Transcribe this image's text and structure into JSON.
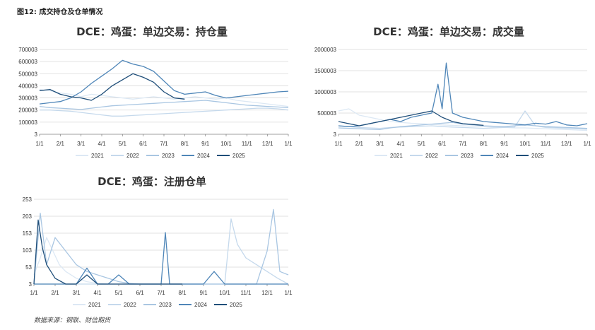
{
  "figure": {
    "title": "图12: 成交持仓及仓单情况",
    "source": "数据来源：钢联、财信期货"
  },
  "chart_data": [
    {
      "type": "line",
      "title": "DCE：鸡蛋：单边交易：持仓量",
      "y_ticks": [
        "3",
        "100003",
        "200003",
        "300003",
        "400003",
        "500003",
        "600003",
        "700003"
      ],
      "ylim": [
        3,
        700003
      ],
      "x_ticks": [
        "1/1",
        "2/1",
        "3/1",
        "4/1",
        "5/1",
        "6/1",
        "7/1",
        "8/1",
        "9/1",
        "10/1",
        "11/1",
        "12/1",
        "1/1"
      ],
      "xlim": [
        0,
        12
      ],
      "grid": true,
      "legend": "bottom",
      "series": [
        {
          "name": "2021",
          "color": "#dce8f4",
          "x": [
            0,
            0.5,
            1,
            1.5,
            2,
            2.5,
            3,
            3.5,
            4,
            4.5,
            5,
            5.5,
            6,
            6.5,
            7,
            7.5,
            8,
            8.5,
            9,
            9.5,
            10,
            10.5,
            11,
            11.5,
            12
          ],
          "y": [
            370000,
            360000,
            340000,
            330000,
            310000,
            330000,
            320000,
            310000,
            300000,
            290000,
            300000,
            310000,
            300000,
            290000,
            300000,
            310000,
            300000,
            290000,
            300000,
            280000,
            270000,
            260000,
            250000,
            240000,
            230000
          ]
        },
        {
          "name": "2022",
          "color": "#c5d9ec",
          "x": [
            0,
            0.5,
            1,
            1.5,
            2,
            2.5,
            3,
            3.5,
            4,
            4.5,
            5,
            5.5,
            6,
            6.5,
            7,
            7.5,
            8,
            8.5,
            9,
            9.5,
            10,
            10.5,
            11,
            11.5,
            12
          ],
          "y": [
            200000,
            200000,
            195000,
            190000,
            180000,
            170000,
            160000,
            150000,
            150000,
            155000,
            160000,
            165000,
            170000,
            175000,
            180000,
            185000,
            190000,
            195000,
            200000,
            205000,
            210000,
            215000,
            215000,
            210000,
            200000
          ]
        },
        {
          "name": "2023",
          "color": "#a9c6e2",
          "x": [
            0,
            0.5,
            1,
            1.5,
            2,
            2.5,
            3,
            3.5,
            4,
            4.5,
            5,
            5.5,
            6,
            6.5,
            7,
            7.5,
            8,
            8.5,
            9,
            9.5,
            10,
            10.5,
            11,
            11.5,
            12
          ],
          "y": [
            230000,
            220000,
            215000,
            210000,
            205000,
            215000,
            225000,
            235000,
            240000,
            245000,
            250000,
            255000,
            260000,
            265000,
            270000,
            275000,
            280000,
            270000,
            260000,
            250000,
            240000,
            235000,
            230000,
            225000,
            220000
          ]
        },
        {
          "name": "2024",
          "color": "#4f86b8",
          "x": [
            0,
            0.5,
            1,
            1.5,
            2,
            2.5,
            3,
            3.5,
            4,
            4.5,
            5,
            5.5,
            6,
            6.5,
            7,
            7.5,
            8,
            8.5,
            9,
            9.5,
            10,
            10.5,
            11,
            11.5,
            12
          ],
          "y": [
            250000,
            260000,
            270000,
            300000,
            350000,
            420000,
            480000,
            540000,
            610000,
            580000,
            560000,
            520000,
            440000,
            360000,
            330000,
            340000,
            350000,
            320000,
            300000,
            310000,
            320000,
            330000,
            340000,
            350000,
            355000
          ]
        },
        {
          "name": "2025",
          "color": "#1f4e79",
          "x": [
            0,
            0.5,
            1,
            1.5,
            2,
            2.5,
            3,
            3.5,
            4,
            4.5,
            5,
            5.5,
            6,
            6.5,
            7
          ],
          "y": [
            360000,
            370000,
            330000,
            310000,
            300000,
            280000,
            330000,
            400000,
            450000,
            500000,
            470000,
            430000,
            350000,
            300000,
            290000
          ]
        }
      ]
    },
    {
      "type": "line",
      "title": "DCE：鸡蛋：单边交易：成交量",
      "y_ticks": [
        "3",
        "500003",
        "1000003",
        "1500003",
        "2000003"
      ],
      "ylim": [
        3,
        2000003
      ],
      "x_ticks": [
        "1/1",
        "2/1",
        "3/1",
        "4/1",
        "5/1",
        "6/1",
        "7/1",
        "8/1",
        "9/1",
        "10/1",
        "11/1",
        "12/1",
        "1/1"
      ],
      "xlim": [
        0,
        12
      ],
      "grid": true,
      "legend": "bottom",
      "series": [
        {
          "name": "2021",
          "color": "#dce8f4",
          "x": [
            0,
            0.5,
            1,
            1.5,
            2,
            2.5,
            3,
            3.5,
            4,
            4.5,
            5,
            5.5,
            6,
            6.5,
            7,
            7.5,
            8,
            8.5,
            9,
            9.5,
            10,
            10.5,
            11,
            11.5,
            12
          ],
          "y": [
            550000,
            600000,
            450000,
            400000,
            350000,
            300000,
            280000,
            260000,
            250000,
            230000,
            220000,
            210000,
            200000,
            190000,
            180000,
            170000,
            160000,
            150000,
            150000,
            140000,
            130000,
            120000,
            110000,
            100000,
            90000
          ]
        },
        {
          "name": "2022",
          "color": "#c5d9ec",
          "x": [
            0,
            0.5,
            1,
            1.5,
            2,
            2.5,
            3,
            3.5,
            4,
            4.5,
            5,
            5.5,
            6,
            6.5,
            7,
            7.5,
            8,
            8.5,
            9,
            9.5,
            10,
            10.5,
            11,
            11.5,
            12
          ],
          "y": [
            200000,
            180000,
            160000,
            150000,
            140000,
            160000,
            170000,
            180000,
            190000,
            200000,
            180000,
            170000,
            160000,
            150000,
            140000,
            150000,
            160000,
            170000,
            550000,
            200000,
            160000,
            150000,
            140000,
            130000,
            120000
          ]
        },
        {
          "name": "2023",
          "color": "#a9c6e2",
          "x": [
            0,
            0.5,
            1,
            1.5,
            2,
            2.5,
            3,
            3.5,
            4,
            4.5,
            5,
            5.5,
            6,
            6.5,
            7,
            7.5,
            8,
            8.5,
            9,
            9.5,
            10,
            10.5,
            11,
            11.5,
            12
          ],
          "y": [
            150000,
            140000,
            130000,
            120000,
            110000,
            150000,
            180000,
            200000,
            220000,
            240000,
            260000,
            280000,
            240000,
            220000,
            200000,
            190000,
            180000,
            200000,
            220000,
            200000,
            180000,
            170000,
            160000,
            150000,
            140000
          ]
        },
        {
          "name": "2024",
          "color": "#4f86b8",
          "x": [
            0,
            0.5,
            1,
            1.5,
            2,
            2.5,
            3,
            3.5,
            4,
            4.5,
            4.8,
            5,
            5.2,
            5.5,
            6,
            6.5,
            7,
            7.5,
            8,
            8.5,
            9,
            9.5,
            10,
            10.5,
            11,
            11.5,
            12
          ],
          "y": [
            200000,
            180000,
            200000,
            250000,
            300000,
            350000,
            300000,
            400000,
            450000,
            500000,
            1180000,
            600000,
            1680000,
            500000,
            400000,
            350000,
            300000,
            280000,
            260000,
            240000,
            220000,
            260000,
            240000,
            300000,
            220000,
            200000,
            250000
          ]
        },
        {
          "name": "2025",
          "color": "#1f4e79",
          "x": [
            0,
            0.5,
            1,
            1.5,
            2,
            2.5,
            3,
            3.5,
            4,
            4.5,
            5,
            5.5,
            6,
            6.5,
            7
          ],
          "y": [
            300000,
            250000,
            200000,
            250000,
            300000,
            350000,
            400000,
            450000,
            500000,
            550000,
            400000,
            300000,
            250000,
            230000,
            210000
          ]
        }
      ]
    },
    {
      "type": "line",
      "title": "DCE：鸡蛋：注册仓单",
      "y_ticks": [
        "3",
        "53",
        "103",
        "153",
        "203",
        "253"
      ],
      "ylim": [
        3,
        253
      ],
      "x_ticks": [
        "1/1",
        "2/1",
        "3/1",
        "4/1",
        "5/1",
        "6/1",
        "7/1",
        "8/1",
        "9/1",
        "10/1",
        "11/1",
        "12/1",
        "1/1"
      ],
      "xlim": [
        0,
        12
      ],
      "grid": true,
      "legend": "bottom",
      "series": [
        {
          "name": "2021",
          "color": "#dce8f4",
          "x": [
            0,
            0.3,
            0.6,
            0.9,
            1.2,
            1.5,
            2,
            2.5,
            3,
            3.5,
            4,
            4.5,
            5,
            5.5,
            6,
            6.5,
            7,
            7.5,
            8,
            8.5,
            9,
            9.5,
            10,
            10.5,
            11,
            11.5,
            12
          ],
          "y": [
            30,
            80,
            140,
            100,
            60,
            40,
            20,
            10,
            5,
            3,
            3,
            3,
            3,
            3,
            3,
            3,
            3,
            3,
            3,
            3,
            3,
            3,
            3,
            3,
            3,
            3,
            3
          ]
        },
        {
          "name": "2022",
          "color": "#c5d9ec",
          "x": [
            0,
            0.5,
            1,
            1.5,
            2,
            2.5,
            3,
            3.5,
            4,
            4.5,
            5,
            5.5,
            6,
            6.5,
            7,
            7.5,
            8,
            8.5,
            9,
            9.3,
            9.6,
            10,
            10.5,
            11,
            11.5,
            12
          ],
          "y": [
            3,
            3,
            3,
            3,
            3,
            3,
            3,
            3,
            3,
            3,
            3,
            3,
            3,
            3,
            3,
            3,
            3,
            3,
            3,
            195,
            120,
            80,
            60,
            40,
            20,
            3
          ]
        },
        {
          "name": "2023",
          "color": "#a9c6e2",
          "x": [
            0,
            0.3,
            0.6,
            1,
            1.5,
            2,
            2.5,
            3,
            3.5,
            4,
            4.5,
            5,
            5.5,
            6,
            6.5,
            7,
            7.5,
            8,
            8.5,
            9,
            9.5,
            10,
            10.5,
            11,
            11.3,
            11.6,
            12
          ],
          "y": [
            3,
            212,
            60,
            140,
            100,
            60,
            40,
            30,
            20,
            10,
            5,
            3,
            3,
            3,
            3,
            3,
            3,
            3,
            3,
            3,
            3,
            3,
            3,
            100,
            223,
            40,
            30
          ]
        },
        {
          "name": "2024",
          "color": "#4f86b8",
          "x": [
            0,
            0.5,
            1,
            1.5,
            2,
            2.5,
            3,
            3.5,
            4,
            4.5,
            5,
            5.5,
            6,
            6.2,
            6.4,
            6.8,
            7,
            7.5,
            8,
            8.5,
            9,
            9.5,
            10,
            10.5,
            11,
            11.5,
            12
          ],
          "y": [
            3,
            3,
            3,
            3,
            3,
            50,
            3,
            3,
            30,
            3,
            3,
            3,
            3,
            155,
            3,
            3,
            3,
            3,
            3,
            40,
            3,
            3,
            3,
            3,
            3,
            3,
            3
          ]
        },
        {
          "name": "2025",
          "color": "#1f4e79",
          "x": [
            0,
            0.2,
            0.4,
            0.6,
            0.8,
            1,
            1.5,
            2,
            2.5,
            3,
            3.5,
            4,
            4.5,
            5,
            5.5,
            6,
            6.5,
            7
          ],
          "y": [
            3,
            192,
            110,
            60,
            40,
            20,
            3,
            3,
            30,
            3,
            3,
            3,
            3,
            3,
            3,
            3,
            3,
            3
          ]
        }
      ]
    }
  ]
}
